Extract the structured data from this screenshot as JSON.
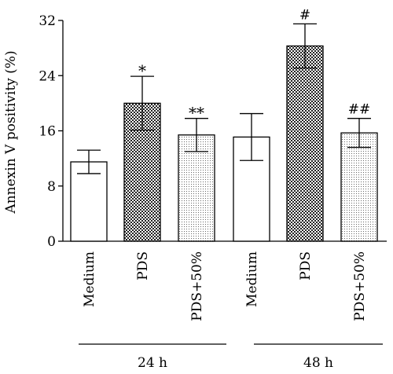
{
  "chart_data": {
    "type": "bar",
    "title": "",
    "xlabel": "",
    "ylabel": "Annexin V positivity (%)",
    "ylim": [
      0,
      32
    ],
    "yticks": [
      0,
      8,
      16,
      24,
      32
    ],
    "grid": false,
    "legend": "none",
    "categories": [
      "Medium",
      "PDS",
      "PDS+50%",
      "Medium",
      "PDS",
      "PDS+50%"
    ],
    "groups": [
      {
        "label": "24 h",
        "bar_indices": [
          0,
          1,
          2
        ]
      },
      {
        "label": "48 h",
        "bar_indices": [
          3,
          4,
          5
        ]
      }
    ],
    "values": [
      11.5,
      20.0,
      15.4,
      15.1,
      28.3,
      15.7
    ],
    "errors": [
      1.7,
      3.9,
      2.4,
      3.4,
      3.2,
      2.1
    ],
    "annotations": [
      "",
      "*",
      "**",
      "",
      "#",
      "##"
    ],
    "patterns": [
      "white",
      "checker",
      "dots",
      "white",
      "checker",
      "dots"
    ]
  }
}
